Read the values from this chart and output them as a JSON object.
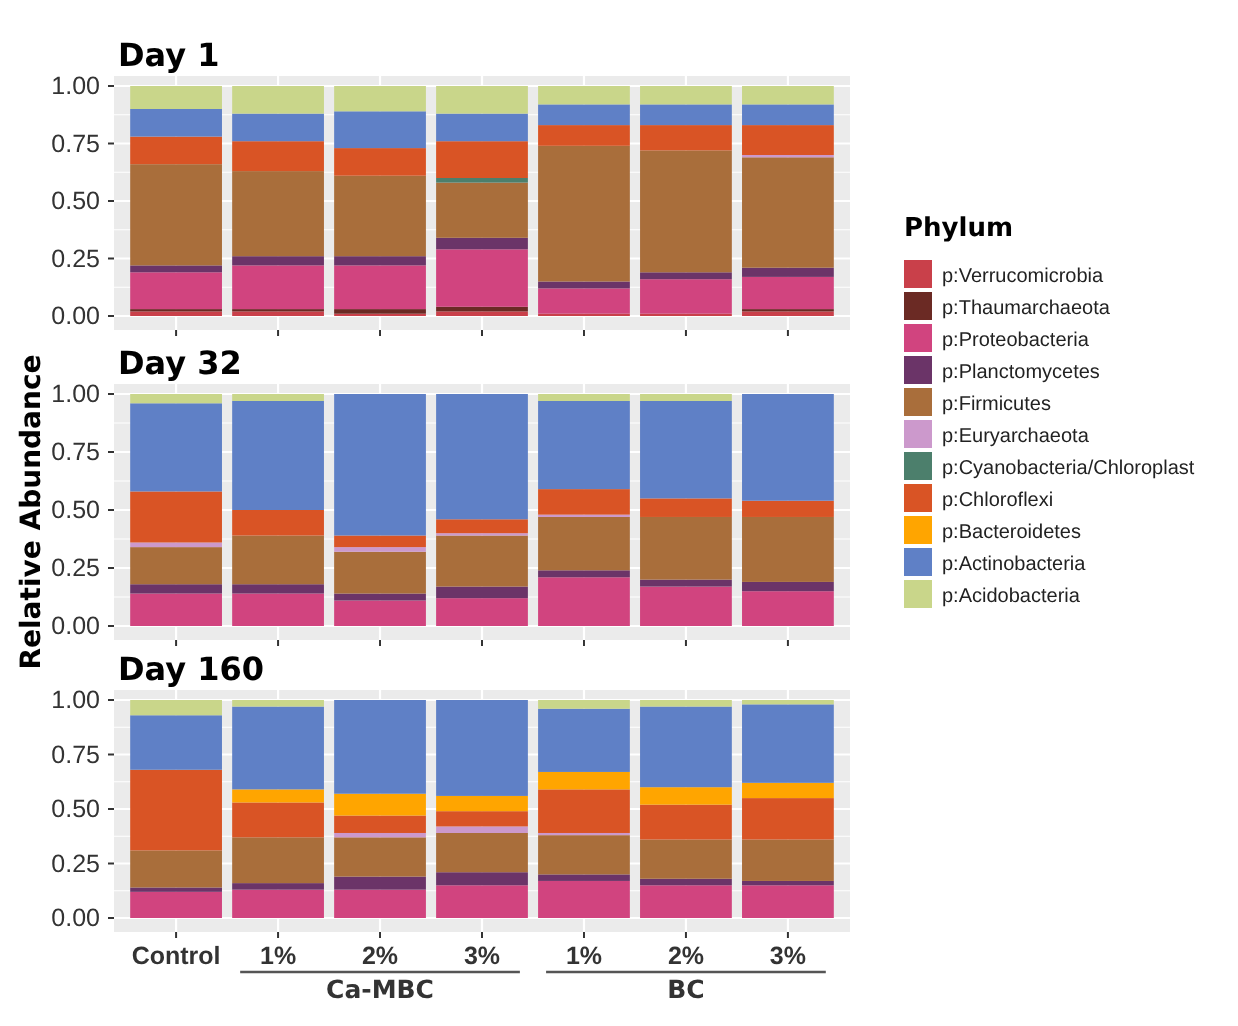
{
  "chart_data": [
    {
      "type": "bar",
      "stacked": true,
      "title": "Day 1",
      "categories": [
        "Control",
        "1%",
        "2%",
        "3%",
        "1%",
        "2%",
        "3%"
      ],
      "ylim": [
        0,
        1
      ],
      "yticks": [
        {
          "value": 0,
          "label": "0.00"
        },
        {
          "value": 0.25,
          "label": "0.25"
        },
        {
          "value": 0.5,
          "label": "0.50"
        },
        {
          "value": 0.75,
          "label": "0.75"
        },
        {
          "value": 1,
          "label": "1.00"
        }
      ],
      "grid": true,
      "tick_labels": "y",
      "legend": "right",
      "legend_title": "Phylum",
      "series": [
        {
          "name": "p:Verrucomicrobia",
          "color": "#c9404a",
          "values": [
            0.02,
            0.02,
            0.01,
            0.02,
            0.01,
            0.01,
            0.02
          ]
        },
        {
          "name": "p:Thaumarchaeota",
          "color": "#6b2a24",
          "values": [
            0.01,
            0.01,
            0.02,
            0.02,
            0,
            0,
            0.01
          ]
        },
        {
          "name": "p:Proteobacteria",
          "color": "#d1447f",
          "values": [
            0.16,
            0.19,
            0.19,
            0.25,
            0.11,
            0.15,
            0.14
          ]
        },
        {
          "name": "p:Planctomycetes",
          "color": "#6b3468",
          "values": [
            0.03,
            0.04,
            0.04,
            0.05,
            0.03,
            0.03,
            0.04
          ]
        },
        {
          "name": "p:Firmicutes",
          "color": "#a96e3b",
          "values": [
            0.44,
            0.37,
            0.35,
            0.24,
            0.59,
            0.53,
            0.48
          ]
        },
        {
          "name": "p:Euryarchaeota",
          "color": "#cc99cc",
          "values": [
            0,
            0,
            0,
            0,
            0,
            0,
            0.01
          ]
        },
        {
          "name": "p:Cyanobacteria/Chloroplast",
          "color": "#4c7f6c",
          "values": [
            0,
            0,
            0,
            0.02,
            0,
            0,
            0
          ]
        },
        {
          "name": "p:Chloroflexi",
          "color": "#d95425",
          "values": [
            0.12,
            0.13,
            0.12,
            0.16,
            0.09,
            0.11,
            0.13
          ]
        },
        {
          "name": "p:Actinobacteria",
          "color": "#5f80c6",
          "values": [
            0.12,
            0.12,
            0.16,
            0.12,
            0.09,
            0.09,
            0.09
          ]
        },
        {
          "name": "p:Acidobacteria",
          "color": "#c9d68a",
          "values": [
            0.1,
            0.12,
            0.11,
            0.12,
            0.08,
            0.08,
            0.08
          ]
        }
      ]
    },
    {
      "type": "bar",
      "stacked": true,
      "title": "Day 32",
      "ylabel": "Relative Abundance",
      "categories": [
        "Control",
        "1%",
        "2%",
        "3%",
        "1%",
        "2%",
        "3%"
      ],
      "ylim": [
        0,
        1
      ],
      "yticks": [
        {
          "value": 0,
          "label": "0.00"
        },
        {
          "value": 0.25,
          "label": "0.25"
        },
        {
          "value": 0.5,
          "label": "0.50"
        },
        {
          "value": 0.75,
          "label": "0.75"
        },
        {
          "value": 1,
          "label": "1.00"
        }
      ],
      "grid": true,
      "tick_labels": "y",
      "series": [
        {
          "name": "p:Proteobacteria",
          "color": "#d1447f",
          "values": [
            0.14,
            0.14,
            0.11,
            0.12,
            0.21,
            0.17,
            0.15
          ]
        },
        {
          "name": "p:Planctomycetes",
          "color": "#6b3468",
          "values": [
            0.04,
            0.04,
            0.03,
            0.05,
            0.03,
            0.03,
            0.04
          ]
        },
        {
          "name": "p:Firmicutes",
          "color": "#a96e3b",
          "values": [
            0.16,
            0.21,
            0.18,
            0.22,
            0.23,
            0.27,
            0.28
          ]
        },
        {
          "name": "p:Euryarchaeota",
          "color": "#cc99cc",
          "values": [
            0.02,
            0,
            0.02,
            0.01,
            0.01,
            0,
            0
          ]
        },
        {
          "name": "p:Chloroflexi",
          "color": "#d95425",
          "values": [
            0.22,
            0.11,
            0.05,
            0.06,
            0.11,
            0.08,
            0.07
          ]
        },
        {
          "name": "p:Actinobacteria",
          "color": "#5f80c6",
          "values": [
            0.38,
            0.47,
            0.61,
            0.54,
            0.38,
            0.42,
            0.46
          ]
        },
        {
          "name": "p:Acidobacteria",
          "color": "#c9d68a",
          "values": [
            0.04,
            0.03,
            0,
            0,
            0.03,
            0.03,
            0
          ]
        }
      ]
    },
    {
      "type": "bar",
      "stacked": true,
      "title": "Day 160",
      "categories": [
        "Control",
        "1%",
        "2%",
        "3%",
        "1%",
        "2%",
        "3%"
      ],
      "ylim": [
        0,
        1
      ],
      "yticks": [
        {
          "value": 0,
          "label": "0.00"
        },
        {
          "value": 0.25,
          "label": "0.25"
        },
        {
          "value": 0.5,
          "label": "0.50"
        },
        {
          "value": 0.75,
          "label": "0.75"
        },
        {
          "value": 1,
          "label": "1.00"
        }
      ],
      "grid": true,
      "annotations": [
        "Ca-MBC",
        "BC"
      ],
      "series": [
        {
          "name": "p:Proteobacteria",
          "color": "#d1447f",
          "values": [
            0.12,
            0.13,
            0.13,
            0.15,
            0.17,
            0.15,
            0.15
          ]
        },
        {
          "name": "p:Planctomycetes",
          "color": "#6b3468",
          "values": [
            0.02,
            0.03,
            0.06,
            0.06,
            0.03,
            0.03,
            0.02
          ]
        },
        {
          "name": "p:Firmicutes",
          "color": "#a96e3b",
          "values": [
            0.17,
            0.21,
            0.18,
            0.18,
            0.18,
            0.18,
            0.19
          ]
        },
        {
          "name": "p:Euryarchaeota",
          "color": "#cc99cc",
          "values": [
            0,
            0,
            0.02,
            0.03,
            0.01,
            0,
            0
          ]
        },
        {
          "name": "p:Chloroflexi",
          "color": "#d95425",
          "values": [
            0.37,
            0.16,
            0.08,
            0.07,
            0.2,
            0.16,
            0.19
          ]
        },
        {
          "name": "p:Bacteroidetes",
          "color": "#ffa500",
          "values": [
            0,
            0.06,
            0.1,
            0.07,
            0.08,
            0.08,
            0.07
          ]
        },
        {
          "name": "p:Actinobacteria",
          "color": "#5f80c6",
          "values": [
            0.25,
            0.38,
            0.43,
            0.44,
            0.29,
            0.37,
            0.36
          ]
        },
        {
          "name": "p:Acidobacteria",
          "color": "#c9d68a",
          "values": [
            0.07,
            0.03,
            0,
            0,
            0.04,
            0.03,
            0.02
          ]
        }
      ]
    }
  ]
}
